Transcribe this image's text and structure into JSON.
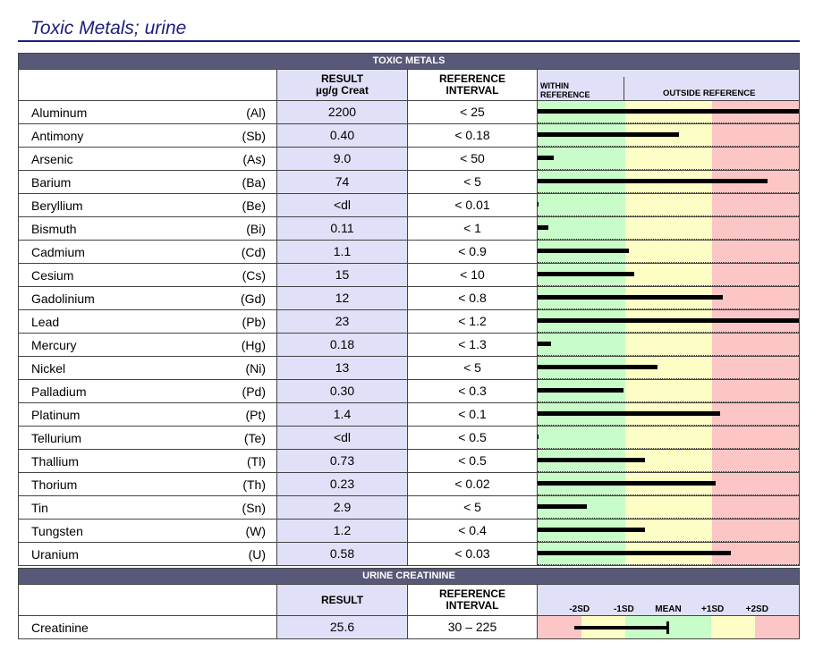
{
  "title": "Toxic Metals; urine",
  "colors": {
    "title": "#1a1f78",
    "band": "#585878",
    "result_bg": "#e0e0f8",
    "within": "#c8fcc8",
    "moderate": "#fdfdc6",
    "outside": "#fdc6c6"
  },
  "toxic": {
    "band": "TOXIC METALS",
    "result_header_1": "RESULT",
    "result_header_2": "µg/g Creat",
    "ref_header_1": "REFERENCE",
    "ref_header_2": "INTERVAL",
    "within_1": "WITHIN",
    "within_2": "REFERENCE",
    "outside": "OUTSIDE REFERENCE",
    "rows": [
      {
        "name": "Aluminum",
        "symbol": "(Al)",
        "result": "2200",
        "ref": "< 25",
        "level": 1.0
      },
      {
        "name": "Antimony",
        "symbol": "(Sb)",
        "result": "0.40",
        "ref": "< 0.18",
        "level": 0.54
      },
      {
        "name": "Arsenic",
        "symbol": "(As)",
        "result": "9.0",
        "ref": "< 50",
        "level": 0.06
      },
      {
        "name": "Barium",
        "symbol": "(Ba)",
        "result": "74",
        "ref": "< 5",
        "level": 0.88
      },
      {
        "name": "Beryllium",
        "symbol": "(Be)",
        "result": "<dl",
        "ref": "< 0.01",
        "level": 0.005
      },
      {
        "name": "Bismuth",
        "symbol": "(Bi)",
        "result": "0.11",
        "ref": "< 1",
        "level": 0.04
      },
      {
        "name": "Cadmium",
        "symbol": "(Cd)",
        "result": "1.1",
        "ref": "< 0.9",
        "level": 0.35
      },
      {
        "name": "Cesium",
        "symbol": "(Cs)",
        "result": "15",
        "ref": "< 10",
        "level": 0.37
      },
      {
        "name": "Gadolinium",
        "symbol": "(Gd)",
        "result": "12",
        "ref": "< 0.8",
        "level": 0.71
      },
      {
        "name": "Lead",
        "symbol": "(Pb)",
        "result": "23",
        "ref": "< 1.2",
        "level": 1.0
      },
      {
        "name": "Mercury",
        "symbol": "(Hg)",
        "result": "0.18",
        "ref": "< 1.3",
        "level": 0.05
      },
      {
        "name": "Nickel",
        "symbol": "(Ni)",
        "result": "13",
        "ref": "< 5",
        "level": 0.46
      },
      {
        "name": "Palladium",
        "symbol": "(Pd)",
        "result": "0.30",
        "ref": "< 0.3",
        "level": 0.33
      },
      {
        "name": "Platinum",
        "symbol": "(Pt)",
        "result": "1.4",
        "ref": "< 0.1",
        "level": 0.7
      },
      {
        "name": "Tellurium",
        "symbol": "(Te)",
        "result": "<dl",
        "ref": "< 0.5",
        "level": 0.005
      },
      {
        "name": "Thallium",
        "symbol": "(Tl)",
        "result": "0.73",
        "ref": "< 0.5",
        "level": 0.41
      },
      {
        "name": "Thorium",
        "symbol": "(Th)",
        "result": "0.23",
        "ref": "< 0.02",
        "level": 0.68
      },
      {
        "name": "Tin",
        "symbol": "(Sn)",
        "result": "2.9",
        "ref": "< 5",
        "level": 0.19
      },
      {
        "name": "Tungsten",
        "symbol": "(W)",
        "result": "1.2",
        "ref": "< 0.4",
        "level": 0.41
      },
      {
        "name": "Uranium",
        "symbol": "(U)",
        "result": "0.58",
        "ref": "< 0.03",
        "level": 0.74
      }
    ]
  },
  "creatinine": {
    "band": "URINE CREATININE",
    "result_header": "RESULT",
    "ref_header_1": "REFERENCE",
    "ref_header_2": "INTERVAL",
    "sd_labels": [
      "-2SD",
      "-1SD",
      "MEAN",
      "+1SD",
      "+2SD"
    ],
    "row": {
      "name": "Creatinine",
      "result": "25.6",
      "ref": "30 – 225",
      "bar_start": 0.14,
      "bar_end": 0.5
    }
  }
}
